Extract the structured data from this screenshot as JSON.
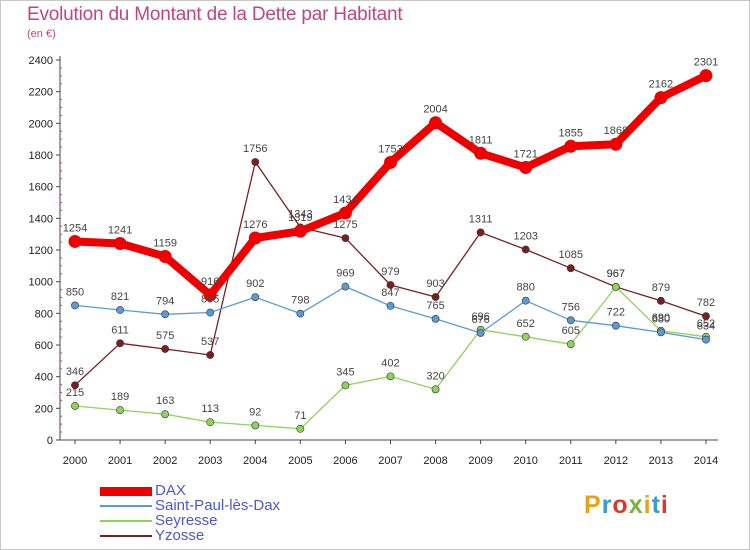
{
  "header": {
    "title": "Evolution du Montant de la Dette par Habitant",
    "subtitle": "(en €)"
  },
  "logo": {
    "text": "Proxiti",
    "colors": [
      "#e8a21a",
      "#3a9ad9",
      "#d93a2b",
      "#7bb33a",
      "#e8a21a",
      "#3a9ad9",
      "#d93a2b"
    ]
  },
  "chart_data": {
    "type": "line",
    "title": "Evolution du Montant de la Dette par Habitant",
    "ylabel": "(en €)",
    "xlabel": "",
    "x": [
      2000,
      2001,
      2002,
      2003,
      2004,
      2005,
      2006,
      2007,
      2008,
      2009,
      2010,
      2011,
      2012,
      2013,
      2014
    ],
    "ylim": [
      0,
      2400
    ],
    "yticks": [
      0,
      200,
      400,
      600,
      800,
      1000,
      1200,
      1400,
      1600,
      1800,
      2000,
      2200,
      2400
    ],
    "grid": false,
    "legend": "bottom-left",
    "series": [
      {
        "name": "DAX",
        "color": "#ee0000",
        "values": [
          1254,
          1241,
          1159,
          916,
          1276,
          1319,
          1434,
          1753,
          2004,
          1811,
          1721,
          1855,
          1868,
          2162,
          2301
        ]
      },
      {
        "name": "Saint-Paul-lès-Dax",
        "color": "#5b9bd5",
        "values": [
          850,
          821,
          794,
          805,
          902,
          798,
          969,
          847,
          765,
          676,
          880,
          756,
          722,
          680,
          634
        ]
      },
      {
        "name": "Seyresse",
        "color": "#8fd45a",
        "values": [
          215,
          189,
          163,
          113,
          92,
          71,
          345,
          402,
          320,
          696,
          652,
          605,
          967,
          690,
          652
        ]
      },
      {
        "name": "Yzosse",
        "color": "#7a1f1f",
        "values": [
          346,
          611,
          575,
          537,
          1756,
          1343,
          1275,
          979,
          903,
          1311,
          1203,
          1085,
          967,
          879,
          782
        ]
      }
    ]
  }
}
